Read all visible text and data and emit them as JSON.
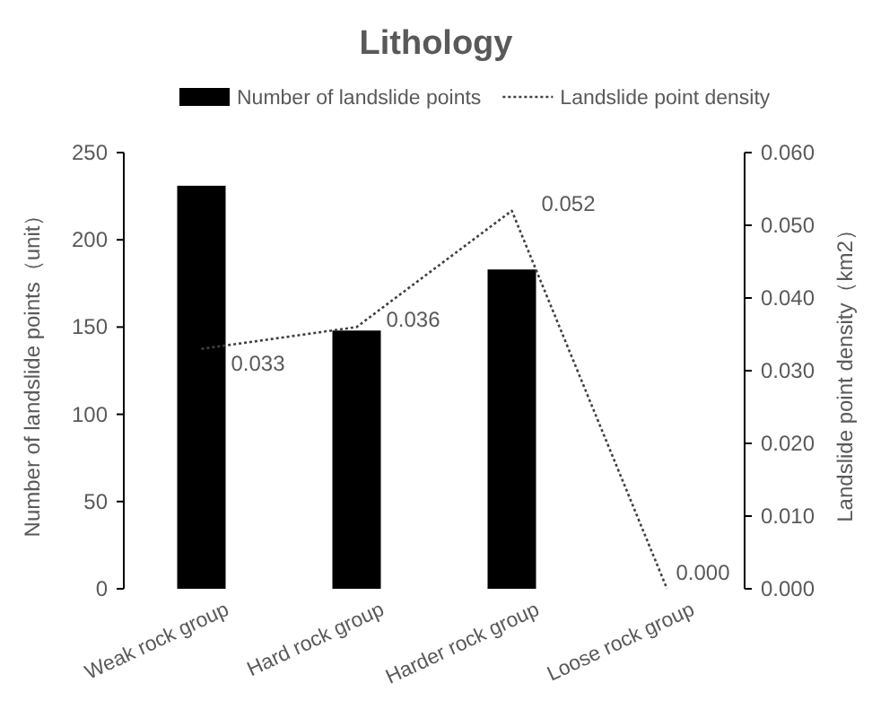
{
  "chart_data": {
    "type": "bar",
    "title": "Lithology",
    "categories": [
      "Weak rock group",
      "Hard rock group",
      "Harder rock group",
      "Loose rock group"
    ],
    "ylabel": "Number of landslide points（unit）",
    "y2label": "Landslide point density（km2）",
    "series": [
      {
        "name": "Number of landslide points",
        "type": "bar",
        "color": "#000000",
        "values": [
          231,
          148,
          183,
          0
        ]
      },
      {
        "name": "Landslide point density",
        "type": "line",
        "axis": "y2",
        "color": "#404040",
        "line_style": "dotted",
        "marker": "none",
        "values": [
          0.033,
          0.036,
          0.052,
          0.0
        ],
        "value_labels": [
          "0.033",
          "0.036",
          "0.052",
          "0.000"
        ]
      }
    ],
    "ylim": [
      0,
      250
    ],
    "yticks": [
      0,
      50,
      100,
      150,
      200,
      250
    ],
    "y2lim": [
      0,
      0.06
    ],
    "y2ticks": [
      {
        "value": 0,
        "label": "0.000"
      },
      {
        "value": 0.01,
        "label": "0.010"
      },
      {
        "value": 0.02,
        "label": "0.020"
      },
      {
        "value": 0.03,
        "label": "0.030"
      },
      {
        "value": 0.04,
        "label": "0.040"
      },
      {
        "value": 0.05,
        "label": "0.050"
      },
      {
        "value": 0.06,
        "label": "0.060"
      }
    ],
    "grid": false,
    "legend": "top"
  }
}
